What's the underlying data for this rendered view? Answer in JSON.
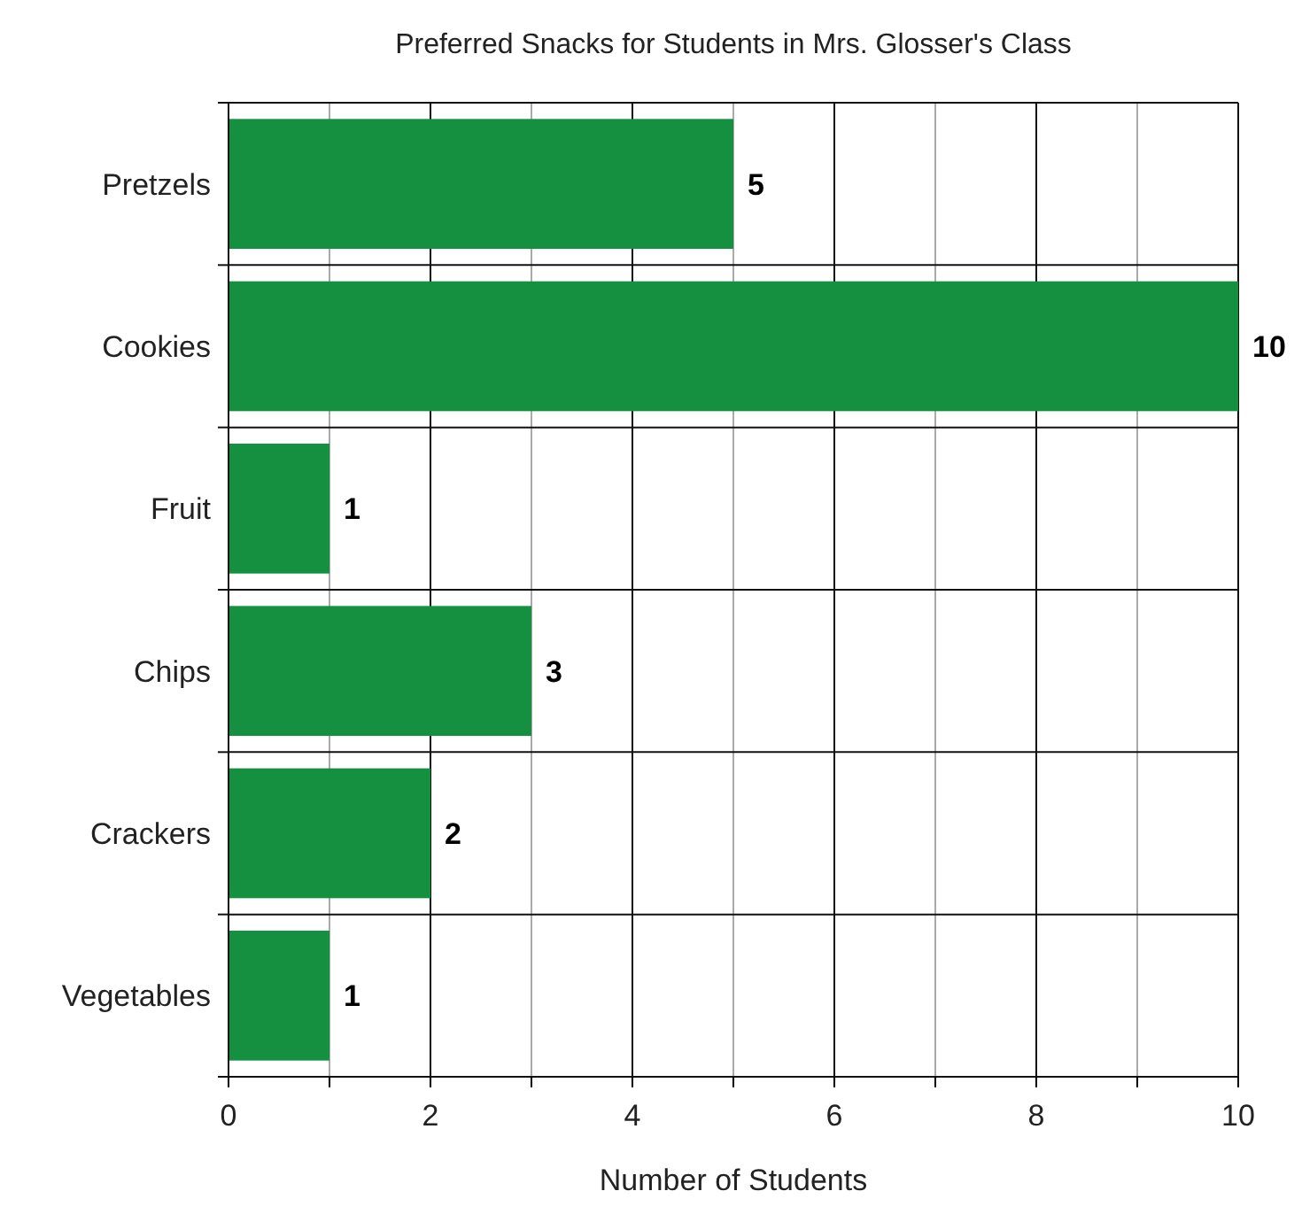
{
  "chart_data": {
    "type": "bar",
    "orientation": "horizontal",
    "title": "Preferred Snacks for Students in Mrs. Glosser's Class",
    "xlabel": "Number of Students",
    "categories": [
      "Pretzels",
      "Cookies",
      "Fruit",
      "Chips",
      "Crackers",
      "Vegetables"
    ],
    "values": [
      5,
      10,
      1,
      3,
      2,
      1
    ],
    "color": "#149040",
    "xlim": [
      0,
      10
    ],
    "xticks": [
      0,
      {
        "value": 1,
        "label": null
      },
      2,
      {
        "value": 3,
        "label": null
      },
      4,
      {
        "value": 5,
        "label": null
      },
      6,
      {
        "value": 7,
        "label": null
      },
      8,
      {
        "value": 9,
        "label": null
      },
      10
    ],
    "grid": true,
    "data_labels": true
  }
}
